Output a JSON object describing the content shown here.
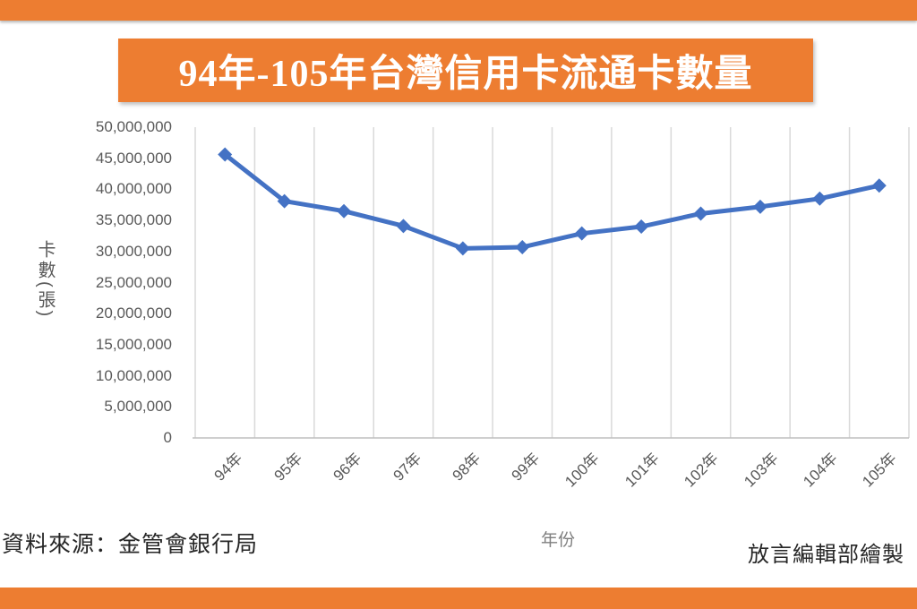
{
  "page": {
    "title": "94年-105年台灣信用卡流通卡數量",
    "source_note": "資料來源：金管會銀行局",
    "credit_note": "放言編輯部繪製"
  },
  "colors": {
    "accent_orange": "#ED7D31",
    "line_blue": "#4472C4",
    "gridline": "#D9D9D9",
    "axis_line": "#BFBFBF",
    "axis_text": "#595959",
    "note_text": "#262626"
  },
  "chart_data": {
    "type": "line",
    "title": "94年-105年台灣信用卡流通卡數量",
    "xlabel": "年份",
    "ylabel": "卡數(張)",
    "categories": [
      "94年",
      "95年",
      "96年",
      "97年",
      "98年",
      "99年",
      "100年",
      "101年",
      "102年",
      "103年",
      "104年",
      "105年"
    ],
    "values": [
      45600000,
      38100000,
      36500000,
      34100000,
      30500000,
      30700000,
      32900000,
      34000000,
      36100000,
      37200000,
      38500000,
      40600000
    ],
    "ylim": [
      0,
      50000000
    ],
    "y_tick_step": 5000000,
    "y_tick_labels": [
      "0",
      "5,000,000",
      "10,000,000",
      "15,000,000",
      "20,000,000",
      "25,000,000",
      "30,000,000",
      "35,000,000",
      "40,000,000",
      "45,000,000",
      "50,000,000"
    ],
    "grid": "vertical-only",
    "marker": "diamond",
    "legend": "none"
  }
}
